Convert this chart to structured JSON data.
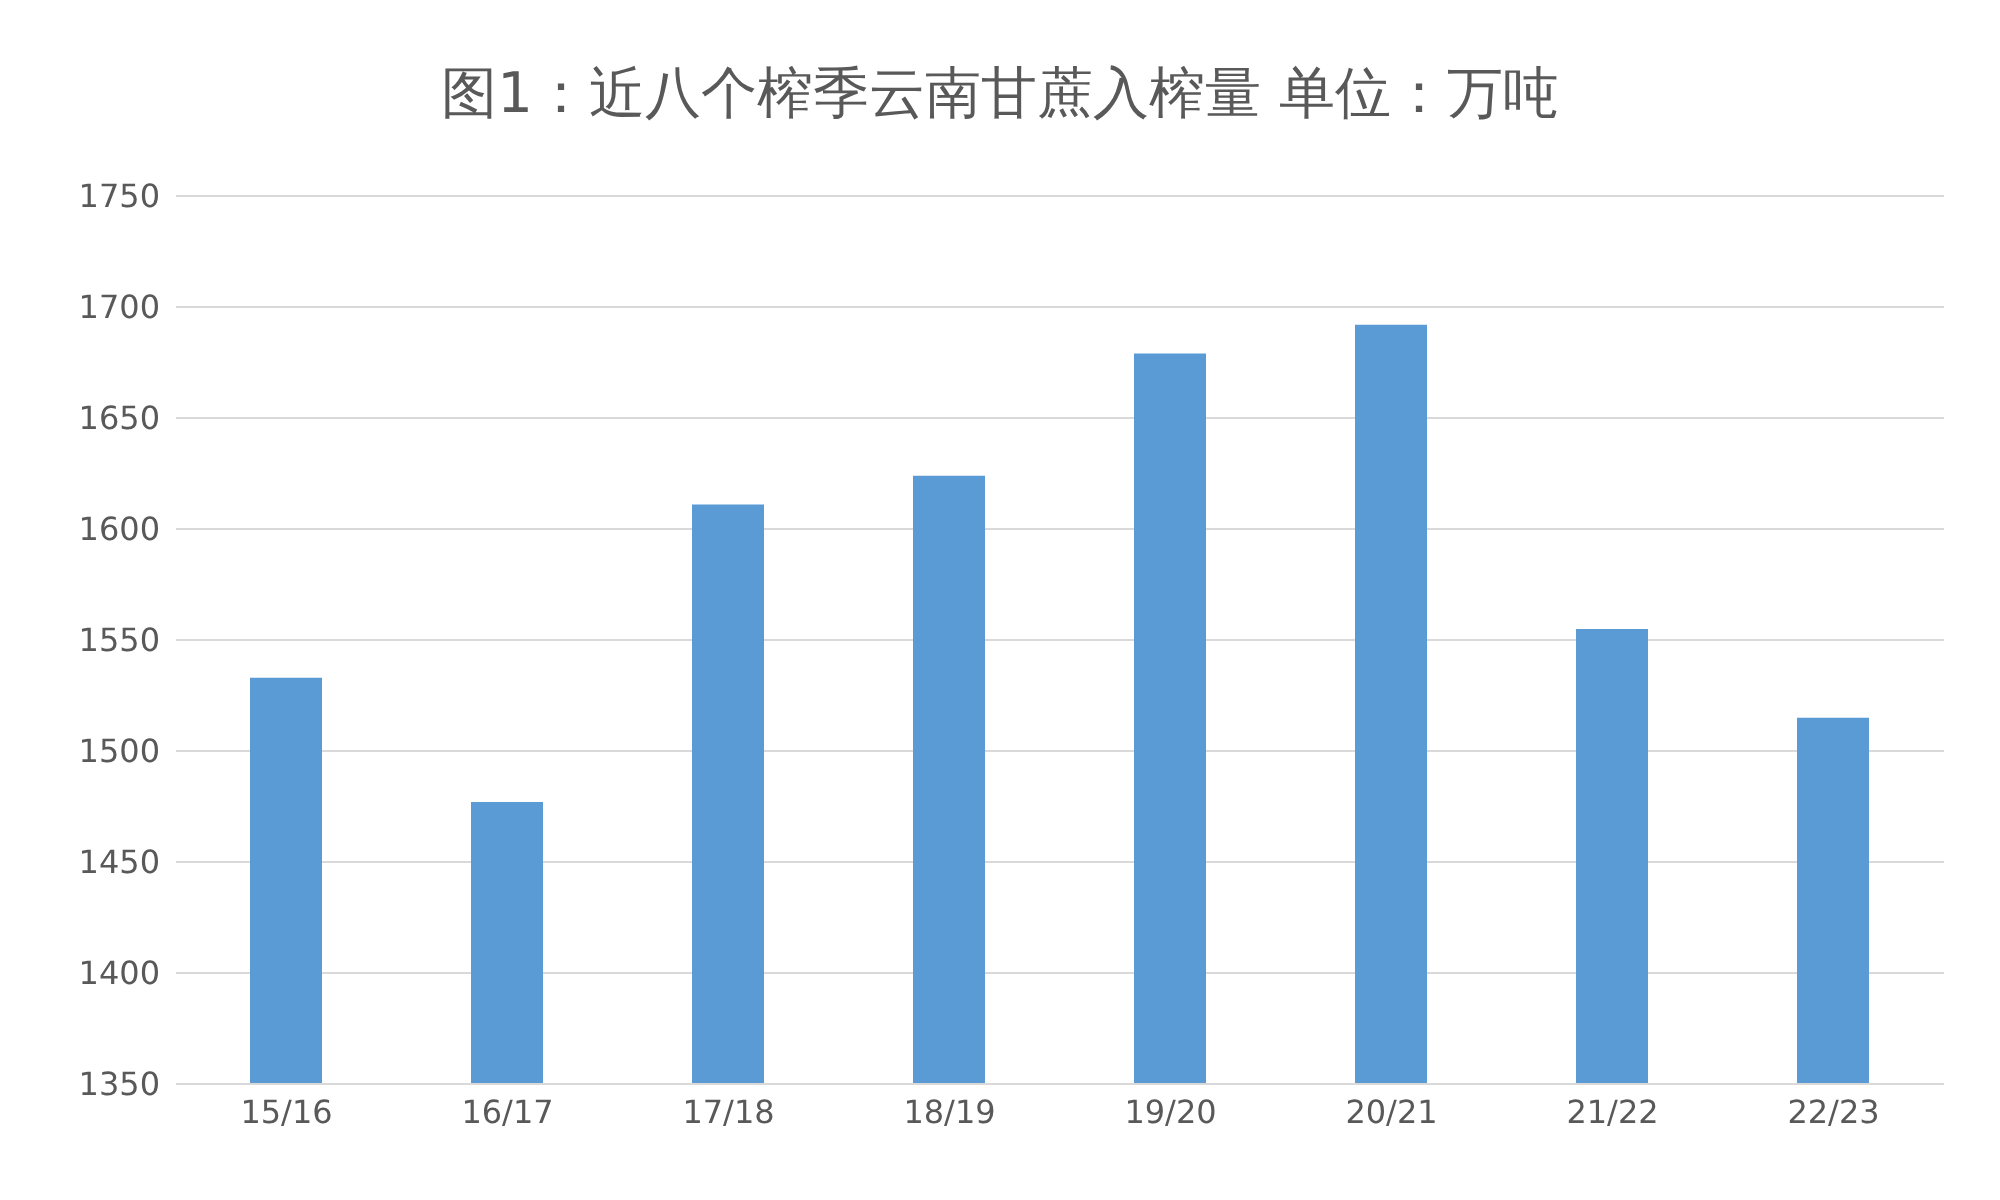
{
  "chart_data": {
    "type": "bar",
    "title": "图1：近八个榨季云南甘蔗入榨量 单位：万吨",
    "categories": [
      "15/16",
      "16/17",
      "17/18",
      "18/19",
      "19/20",
      "20/21",
      "21/22",
      "22/23"
    ],
    "values": [
      1533,
      1477,
      1611,
      1624,
      1679,
      1692,
      1555,
      1515
    ],
    "color": "#5b9bd5",
    "ylim": [
      1350,
      1750
    ],
    "yticks": [
      1350,
      1400,
      1450,
      1500,
      1550,
      1600,
      1650,
      1700,
      1750
    ],
    "grid": "y",
    "legend": false
  }
}
